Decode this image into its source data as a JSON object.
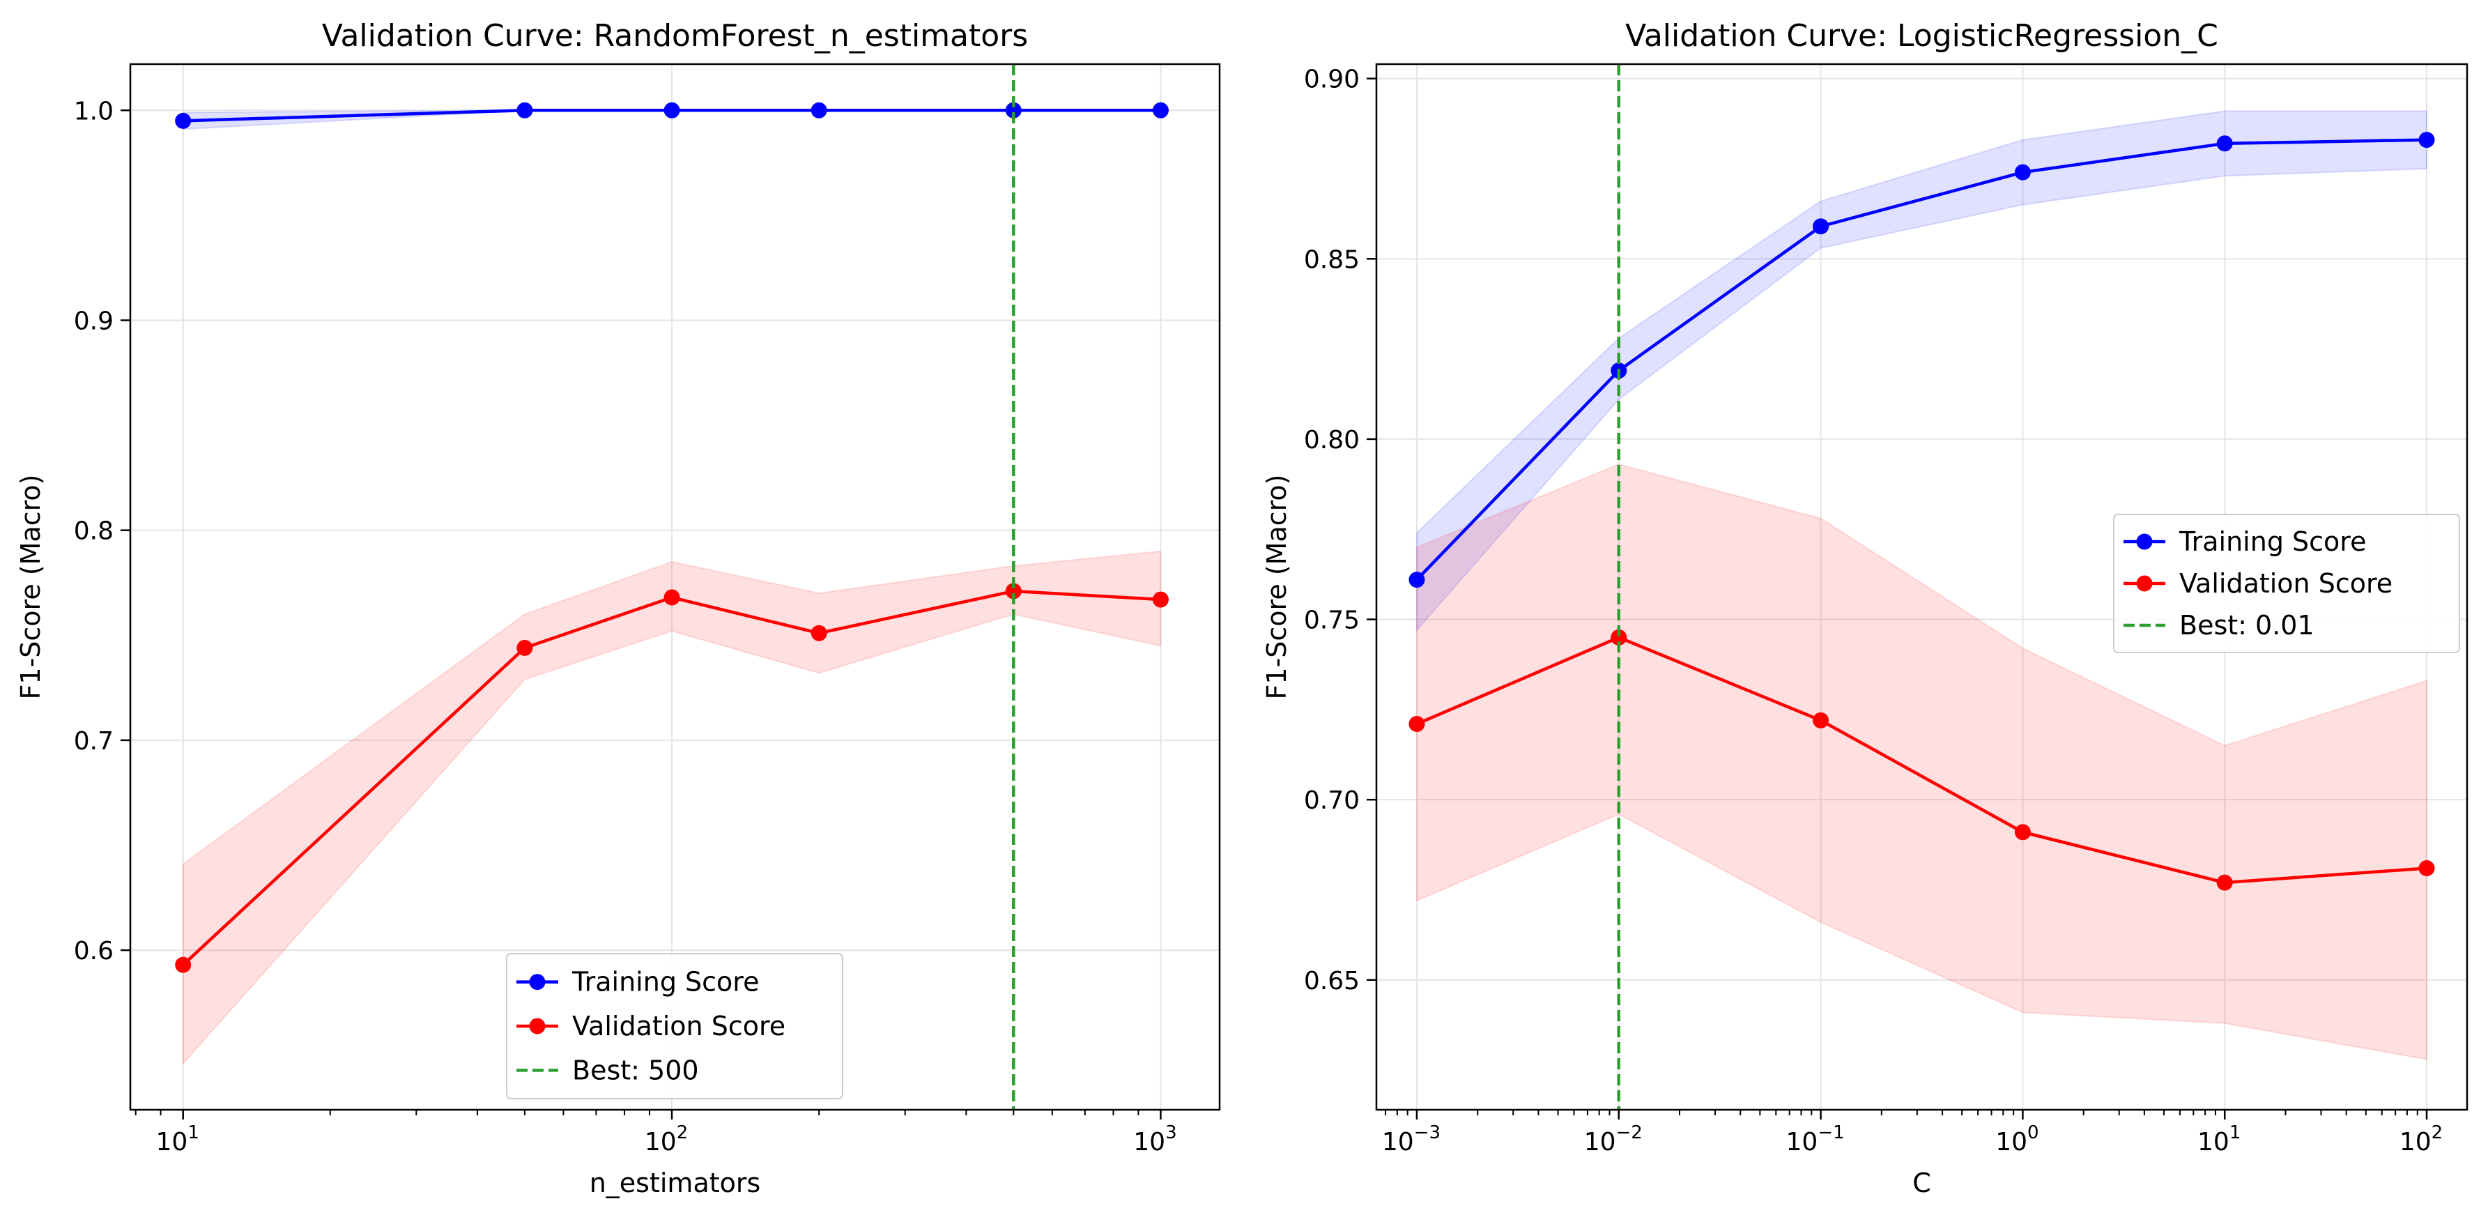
{
  "chart_data": [
    {
      "type": "line",
      "title": "Validation Curve: RandomForest_n_estimators",
      "xlabel": "n_estimators",
      "ylabel": "F1-Score (Macro)",
      "xscale": "log",
      "xlim": [
        7.8,
        1320
      ],
      "ylim": [
        0.524,
        1.022
      ],
      "xticks": [
        {
          "value": 10,
          "base": "10",
          "exp": "1"
        },
        {
          "value": 100,
          "base": "10",
          "exp": "2"
        },
        {
          "value": 1000,
          "base": "10",
          "exp": "3"
        }
      ],
      "yticks": [
        {
          "value": 0.6,
          "label": "0.6"
        },
        {
          "value": 0.7,
          "label": "0.7"
        },
        {
          "value": 0.8,
          "label": "0.8"
        },
        {
          "value": 0.9,
          "label": "0.9"
        },
        {
          "value": 1.0,
          "label": "1.0"
        }
      ],
      "grid": true,
      "x": [
        10,
        50,
        100,
        200,
        500,
        1000
      ],
      "series": [
        {
          "name": "Training Score",
          "color": "#0000ff",
          "band_color": "#0000ff",
          "values": [
            0.995,
            1.0,
            1.0,
            1.0,
            1.0,
            1.0
          ],
          "band_lower": [
            0.991,
            1.0,
            1.0,
            1.0,
            1.0,
            1.0
          ],
          "band_upper": [
            0.999,
            1.0,
            1.0,
            1.0,
            1.0,
            1.0
          ]
        },
        {
          "name": "Validation Score",
          "color": "#ff0000",
          "band_color": "#ff0000",
          "values": [
            0.593,
            0.744,
            0.768,
            0.751,
            0.771,
            0.767
          ],
          "band_lower": [
            0.546,
            0.729,
            0.752,
            0.732,
            0.76,
            0.745
          ],
          "band_upper": [
            0.641,
            0.76,
            0.785,
            0.77,
            0.783,
            0.79
          ]
        }
      ],
      "best": {
        "label": "Best: 500",
        "value": 500,
        "color": "#2ca02c"
      },
      "legend": {
        "position": "bottom-center"
      }
    },
    {
      "type": "line",
      "title": "Validation Curve: LogisticRegression_C",
      "xlabel": "C",
      "ylabel": "F1-Score (Macro)",
      "xscale": "log",
      "xlim": [
        0.000631,
        158.5
      ],
      "ylim": [
        0.614,
        0.904
      ],
      "xticks": [
        {
          "value": 0.001,
          "base": "10",
          "exp": "−3"
        },
        {
          "value": 0.01,
          "base": "10",
          "exp": "−2"
        },
        {
          "value": 0.1,
          "base": "10",
          "exp": "−1"
        },
        {
          "value": 1,
          "base": "10",
          "exp": "0"
        },
        {
          "value": 10,
          "base": "10",
          "exp": "1"
        },
        {
          "value": 100,
          "base": "10",
          "exp": "2"
        }
      ],
      "yticks": [
        {
          "value": 0.65,
          "label": "0.65"
        },
        {
          "value": 0.7,
          "label": "0.70"
        },
        {
          "value": 0.75,
          "label": "0.75"
        },
        {
          "value": 0.8,
          "label": "0.80"
        },
        {
          "value": 0.85,
          "label": "0.85"
        },
        {
          "value": 0.9,
          "label": "0.90"
        }
      ],
      "grid": true,
      "x": [
        0.001,
        0.01,
        0.1,
        1,
        10,
        100
      ],
      "series": [
        {
          "name": "Training Score",
          "color": "#0000ff",
          "band_color": "#0000ff",
          "values": [
            0.761,
            0.819,
            0.859,
            0.874,
            0.882,
            0.883
          ],
          "band_lower": [
            0.747,
            0.811,
            0.853,
            0.865,
            0.873,
            0.875
          ],
          "band_upper": [
            0.774,
            0.828,
            0.866,
            0.883,
            0.891,
            0.891
          ]
        },
        {
          "name": "Validation Score",
          "color": "#ff0000",
          "band_color": "#ff0000",
          "values": [
            0.721,
            0.745,
            0.722,
            0.691,
            0.677,
            0.681
          ],
          "band_lower": [
            0.672,
            0.696,
            0.666,
            0.641,
            0.638,
            0.628
          ],
          "band_upper": [
            0.77,
            0.793,
            0.778,
            0.742,
            0.715,
            0.733
          ]
        }
      ],
      "best": {
        "label": "Best: 0.01",
        "value": 0.01,
        "color": "#2ca02c"
      },
      "legend": {
        "position": "center-right"
      }
    }
  ]
}
